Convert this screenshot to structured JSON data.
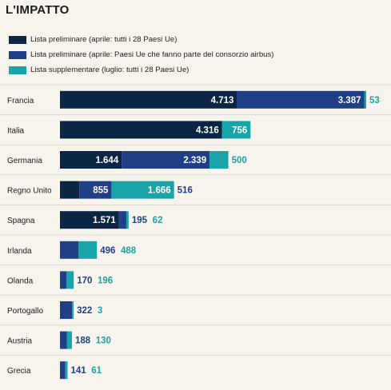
{
  "chart_data": {
    "type": "bar",
    "stacked": true,
    "orientation": "horizontal",
    "title": "L'IMPATTO",
    "categories": [
      "Francia",
      "Italia",
      "Germania",
      "Regno Unito",
      "Spagna",
      "Irlanda",
      "Olanda",
      "Portogallo",
      "Austria",
      "Grecia"
    ],
    "series": [
      {
        "name": "Lista preliminare (aprile: tutti i 28 Paesi Ue)",
        "color": "#0b2545",
        "values": [
          4713,
          4316,
          1644,
          516,
          1571,
          null,
          null,
          null,
          null,
          null
        ],
        "labels": [
          "4.713",
          "4.316",
          "1.644",
          "516",
          "1.571",
          "",
          "",
          "",
          "",
          ""
        ]
      },
      {
        "name": "Lista preliminare (aprile: Paesi Ue che fanno parte del  consorzio airbus)",
        "color": "#1f3f86",
        "values": [
          3387,
          null,
          2339,
          855,
          195,
          496,
          170,
          322,
          188,
          141
        ],
        "labels": [
          "3.387",
          "",
          "2.339",
          "855",
          "195",
          "496",
          "170",
          "322",
          "188",
          "141"
        ]
      },
      {
        "name": "Lista supplementare (luglio: tutti i 28 Paesi Ue)",
        "color": "#1aa3a8",
        "values": [
          53,
          756,
          500,
          1666,
          62,
          488,
          196,
          3,
          130,
          61
        ],
        "labels": [
          "53",
          "756",
          "500",
          "1.666",
          "62",
          "488",
          "196",
          "3",
          "130",
          "61"
        ]
      }
    ],
    "legend_position": "top-left"
  }
}
